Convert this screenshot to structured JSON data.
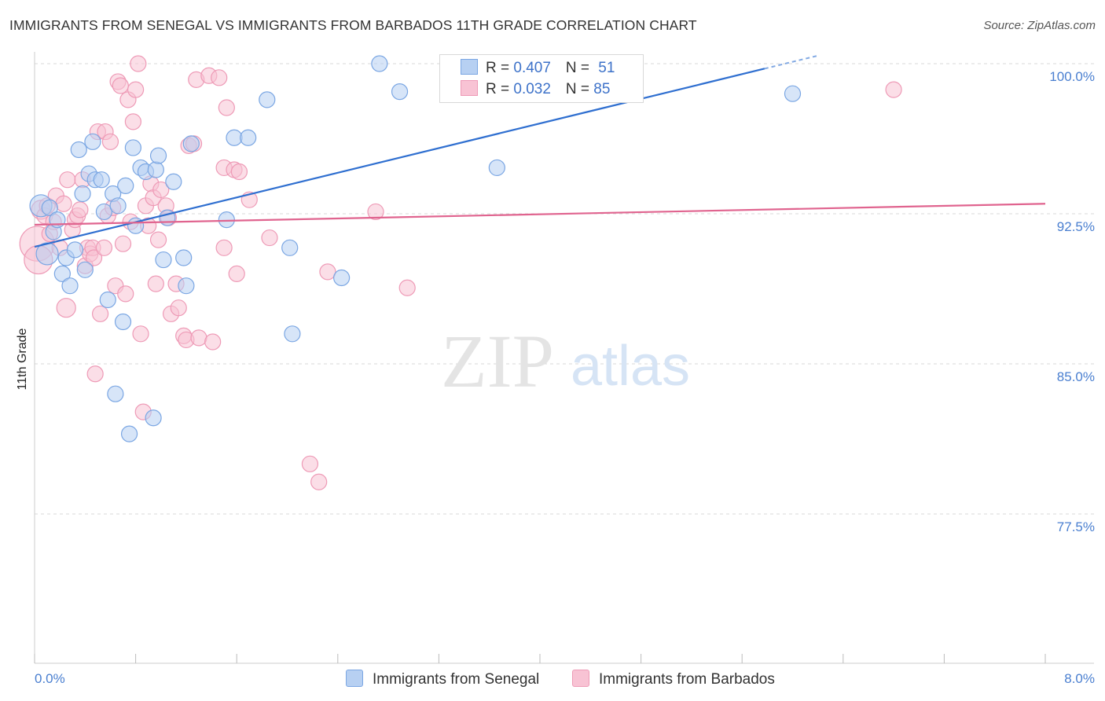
{
  "title": "IMMIGRANTS FROM SENEGAL VS IMMIGRANTS FROM BARBADOS 11TH GRADE CORRELATION CHART",
  "source": "Source: ZipAtlas.com",
  "watermark": {
    "zip": "ZIP",
    "atlas": "atlas"
  },
  "legend_box": {
    "senegal": {
      "r_label": "R = ",
      "r_value": "0.407",
      "n_label": "N = ",
      "n_value": "51"
    },
    "barbados": {
      "r_label": "R = ",
      "r_value": "0.032",
      "n_label": "N = ",
      "n_value": "85"
    }
  },
  "bottom_legend": {
    "senegal": "Immigrants from Senegal",
    "barbados": "Immigrants from Barbados"
  },
  "colors": {
    "senegal_fill": "#b7d0f2",
    "senegal_stroke": "#7aa6e3",
    "senegal_line": "#2f6fd0",
    "barbados_fill": "#f8c3d4",
    "barbados_stroke": "#ee9ab6",
    "barbados_line": "#e0648f"
  },
  "chart_data": {
    "type": "scatter",
    "title": "IMMIGRANTS FROM SENEGAL VS IMMIGRANTS FROM BARBADOS 11TH GRADE CORRELATION CHART",
    "xlabel": "",
    "ylabel": "11th Grade",
    "xlim": [
      0.0,
      8.0
    ],
    "ylim": [
      71.0,
      101.0
    ],
    "x_tick_labels": [
      "0.0%",
      "8.0%"
    ],
    "y_ticks": [
      77.5,
      85.0,
      92.5,
      100.0
    ],
    "y_tick_labels": [
      "77.5%",
      "85.0%",
      "92.5%",
      "100.0%"
    ],
    "grid": true,
    "series": [
      {
        "name": "Immigrants from Senegal",
        "trend": {
          "x0": 0.0,
          "y0": 90.85,
          "x1": 6.2,
          "y1": 100.4
        },
        "points": [
          [
            0.05,
            92.9,
            14
          ],
          [
            0.1,
            90.5,
            14
          ],
          [
            0.12,
            92.8,
            10
          ],
          [
            0.15,
            91.6,
            10
          ],
          [
            0.18,
            92.2,
            10
          ],
          [
            0.22,
            89.5,
            10
          ],
          [
            0.25,
            90.3,
            10
          ],
          [
            0.28,
            88.9,
            10
          ],
          [
            0.32,
            90.7,
            10
          ],
          [
            0.35,
            95.7,
            10
          ],
          [
            0.38,
            93.5,
            10
          ],
          [
            0.4,
            89.7,
            10
          ],
          [
            0.43,
            94.5,
            10
          ],
          [
            0.46,
            96.1,
            10
          ],
          [
            0.48,
            94.2,
            10
          ],
          [
            0.53,
            94.2,
            10
          ],
          [
            0.55,
            92.6,
            10
          ],
          [
            0.58,
            88.2,
            10
          ],
          [
            0.62,
            93.5,
            10
          ],
          [
            0.64,
            83.5,
            10
          ],
          [
            0.66,
            92.9,
            10
          ],
          [
            0.7,
            87.1,
            10
          ],
          [
            0.72,
            93.9,
            10
          ],
          [
            0.75,
            81.5,
            10
          ],
          [
            0.78,
            95.8,
            10
          ],
          [
            0.8,
            91.9,
            10
          ],
          [
            0.84,
            94.8,
            10
          ],
          [
            0.88,
            94.6,
            10
          ],
          [
            0.94,
            82.3,
            10
          ],
          [
            0.96,
            94.7,
            10
          ],
          [
            0.98,
            95.4,
            10
          ],
          [
            1.02,
            90.2,
            10
          ],
          [
            1.05,
            92.3,
            10
          ],
          [
            1.1,
            94.1,
            10
          ],
          [
            1.18,
            90.3,
            10
          ],
          [
            1.2,
            88.9,
            10
          ],
          [
            1.24,
            96.0,
            10
          ],
          [
            1.52,
            92.2,
            10
          ],
          [
            1.58,
            96.3,
            10
          ],
          [
            1.69,
            96.3,
            10
          ],
          [
            1.84,
            98.2,
            10
          ],
          [
            2.02,
            90.8,
            10
          ],
          [
            2.04,
            86.5,
            10
          ],
          [
            2.43,
            89.3,
            10
          ],
          [
            2.73,
            100.0,
            10
          ],
          [
            2.89,
            98.6,
            10
          ],
          [
            3.66,
            94.8,
            10
          ],
          [
            6.0,
            98.5,
            10
          ]
        ]
      },
      {
        "name": "Immigrants from Barbados",
        "trend": {
          "x0": 0.0,
          "y0": 91.95,
          "x1": 8.0,
          "y1": 93.0
        },
        "points": [
          [
            0.02,
            91.0,
            22
          ],
          [
            0.03,
            90.2,
            18
          ],
          [
            0.05,
            92.7,
            12
          ],
          [
            0.08,
            92.4,
            10
          ],
          [
            0.1,
            92.9,
            10
          ],
          [
            0.12,
            91.5,
            10
          ],
          [
            0.15,
            92.1,
            10
          ],
          [
            0.17,
            93.4,
            10
          ],
          [
            0.2,
            90.8,
            10
          ],
          [
            0.23,
            93.0,
            10
          ],
          [
            0.25,
            87.8,
            12
          ],
          [
            0.26,
            94.2,
            10
          ],
          [
            0.3,
            91.7,
            10
          ],
          [
            0.32,
            92.2,
            10
          ],
          [
            0.34,
            92.4,
            10
          ],
          [
            0.36,
            92.7,
            10
          ],
          [
            0.38,
            94.2,
            10
          ],
          [
            0.4,
            89.9,
            10
          ],
          [
            0.42,
            90.8,
            10
          ],
          [
            0.44,
            90.5,
            10
          ],
          [
            0.46,
            90.8,
            10
          ],
          [
            0.47,
            90.3,
            10
          ],
          [
            0.48,
            84.5,
            10
          ],
          [
            0.5,
            96.6,
            10
          ],
          [
            0.52,
            87.5,
            10
          ],
          [
            0.55,
            90.8,
            10
          ],
          [
            0.56,
            96.6,
            10
          ],
          [
            0.58,
            92.4,
            10
          ],
          [
            0.6,
            96.1,
            10
          ],
          [
            0.62,
            92.8,
            10
          ],
          [
            0.64,
            88.9,
            10
          ],
          [
            0.66,
            99.1,
            10
          ],
          [
            0.68,
            98.9,
            10
          ],
          [
            0.7,
            91.0,
            10
          ],
          [
            0.72,
            88.5,
            10
          ],
          [
            0.74,
            98.2,
            10
          ],
          [
            0.76,
            92.1,
            10
          ],
          [
            0.78,
            97.1,
            10
          ],
          [
            0.8,
            98.7,
            10
          ],
          [
            0.82,
            100.0,
            10
          ],
          [
            0.84,
            86.5,
            10
          ],
          [
            0.86,
            82.6,
            10
          ],
          [
            0.88,
            92.9,
            10
          ],
          [
            0.9,
            91.9,
            10
          ],
          [
            0.92,
            94.0,
            10
          ],
          [
            0.94,
            93.3,
            10
          ],
          [
            0.96,
            89.0,
            10
          ],
          [
            0.98,
            91.2,
            10
          ],
          [
            1.0,
            93.7,
            10
          ],
          [
            1.04,
            92.9,
            10
          ],
          [
            1.06,
            92.3,
            10
          ],
          [
            1.08,
            87.5,
            10
          ],
          [
            1.12,
            89.0,
            10
          ],
          [
            1.14,
            87.8,
            10
          ],
          [
            1.18,
            86.4,
            10
          ],
          [
            1.2,
            86.2,
            10
          ],
          [
            1.22,
            95.9,
            10
          ],
          [
            1.26,
            96.0,
            10
          ],
          [
            1.28,
            99.2,
            10
          ],
          [
            1.3,
            86.3,
            10
          ],
          [
            1.38,
            99.4,
            10
          ],
          [
            1.41,
            86.1,
            10
          ],
          [
            1.46,
            99.3,
            10
          ],
          [
            1.5,
            94.8,
            10
          ],
          [
            1.5,
            90.8,
            10
          ],
          [
            1.52,
            97.8,
            10
          ],
          [
            1.58,
            94.7,
            10
          ],
          [
            1.6,
            89.5,
            10
          ],
          [
            1.62,
            94.6,
            10
          ],
          [
            1.7,
            93.2,
            10
          ],
          [
            1.86,
            91.3,
            10
          ],
          [
            2.18,
            80.0,
            10
          ],
          [
            2.25,
            79.1,
            10
          ],
          [
            2.32,
            89.6,
            10
          ],
          [
            2.7,
            92.6,
            10
          ],
          [
            2.95,
            88.8,
            10
          ],
          [
            6.8,
            98.7,
            10
          ]
        ]
      }
    ]
  }
}
